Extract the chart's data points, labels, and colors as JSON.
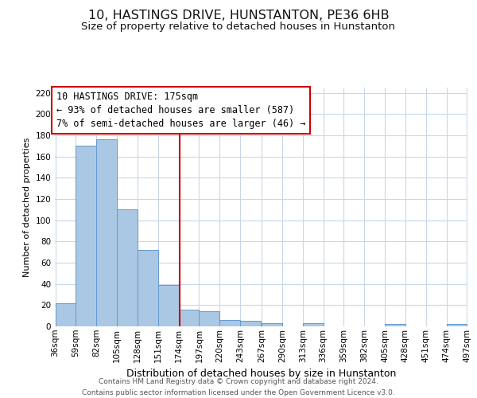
{
  "title": "10, HASTINGS DRIVE, HUNSTANTON, PE36 6HB",
  "subtitle": "Size of property relative to detached houses in Hunstanton",
  "xlabel": "Distribution of detached houses by size in Hunstanton",
  "ylabel": "Number of detached properties",
  "bar_left_edges": [
    36,
    59,
    82,
    105,
    128,
    151,
    174,
    197,
    220,
    243,
    267,
    290,
    313,
    336,
    359,
    382,
    405,
    428,
    451,
    474
  ],
  "bar_heights": [
    22,
    170,
    176,
    110,
    72,
    39,
    16,
    14,
    6,
    5,
    3,
    0,
    3,
    0,
    0,
    0,
    2,
    0,
    0,
    2
  ],
  "bin_width": 23,
  "bar_color": "#aac8e4",
  "bar_edge_color": "#6699cc",
  "property_line_x": 175,
  "property_line_color": "#cc0000",
  "annotation_line1": "10 HASTINGS DRIVE: 175sqm",
  "annotation_line2": "← 93% of detached houses are smaller (587)",
  "annotation_line3": "7% of semi-detached houses are larger (46) →",
  "annotation_box_color": "#cc0000",
  "ylim": [
    0,
    225
  ],
  "yticks": [
    0,
    20,
    40,
    60,
    80,
    100,
    120,
    140,
    160,
    180,
    200,
    220
  ],
  "xtick_labels": [
    "36sqm",
    "59sqm",
    "82sqm",
    "105sqm",
    "128sqm",
    "151sqm",
    "174sqm",
    "197sqm",
    "220sqm",
    "243sqm",
    "267sqm",
    "290sqm",
    "313sqm",
    "336sqm",
    "359sqm",
    "382sqm",
    "405sqm",
    "428sqm",
    "451sqm",
    "474sqm",
    "497sqm"
  ],
  "footer_line1": "Contains HM Land Registry data © Crown copyright and database right 2024.",
  "footer_line2": "Contains public sector information licensed under the Open Government Licence v3.0.",
  "background_color": "#ffffff",
  "grid_color": "#c8d8e8",
  "title_fontsize": 11.5,
  "subtitle_fontsize": 9.5,
  "xlabel_fontsize": 9,
  "ylabel_fontsize": 8,
  "tick_fontsize": 7.5,
  "annotation_fontsize": 8.5,
  "footer_fontsize": 6.5
}
